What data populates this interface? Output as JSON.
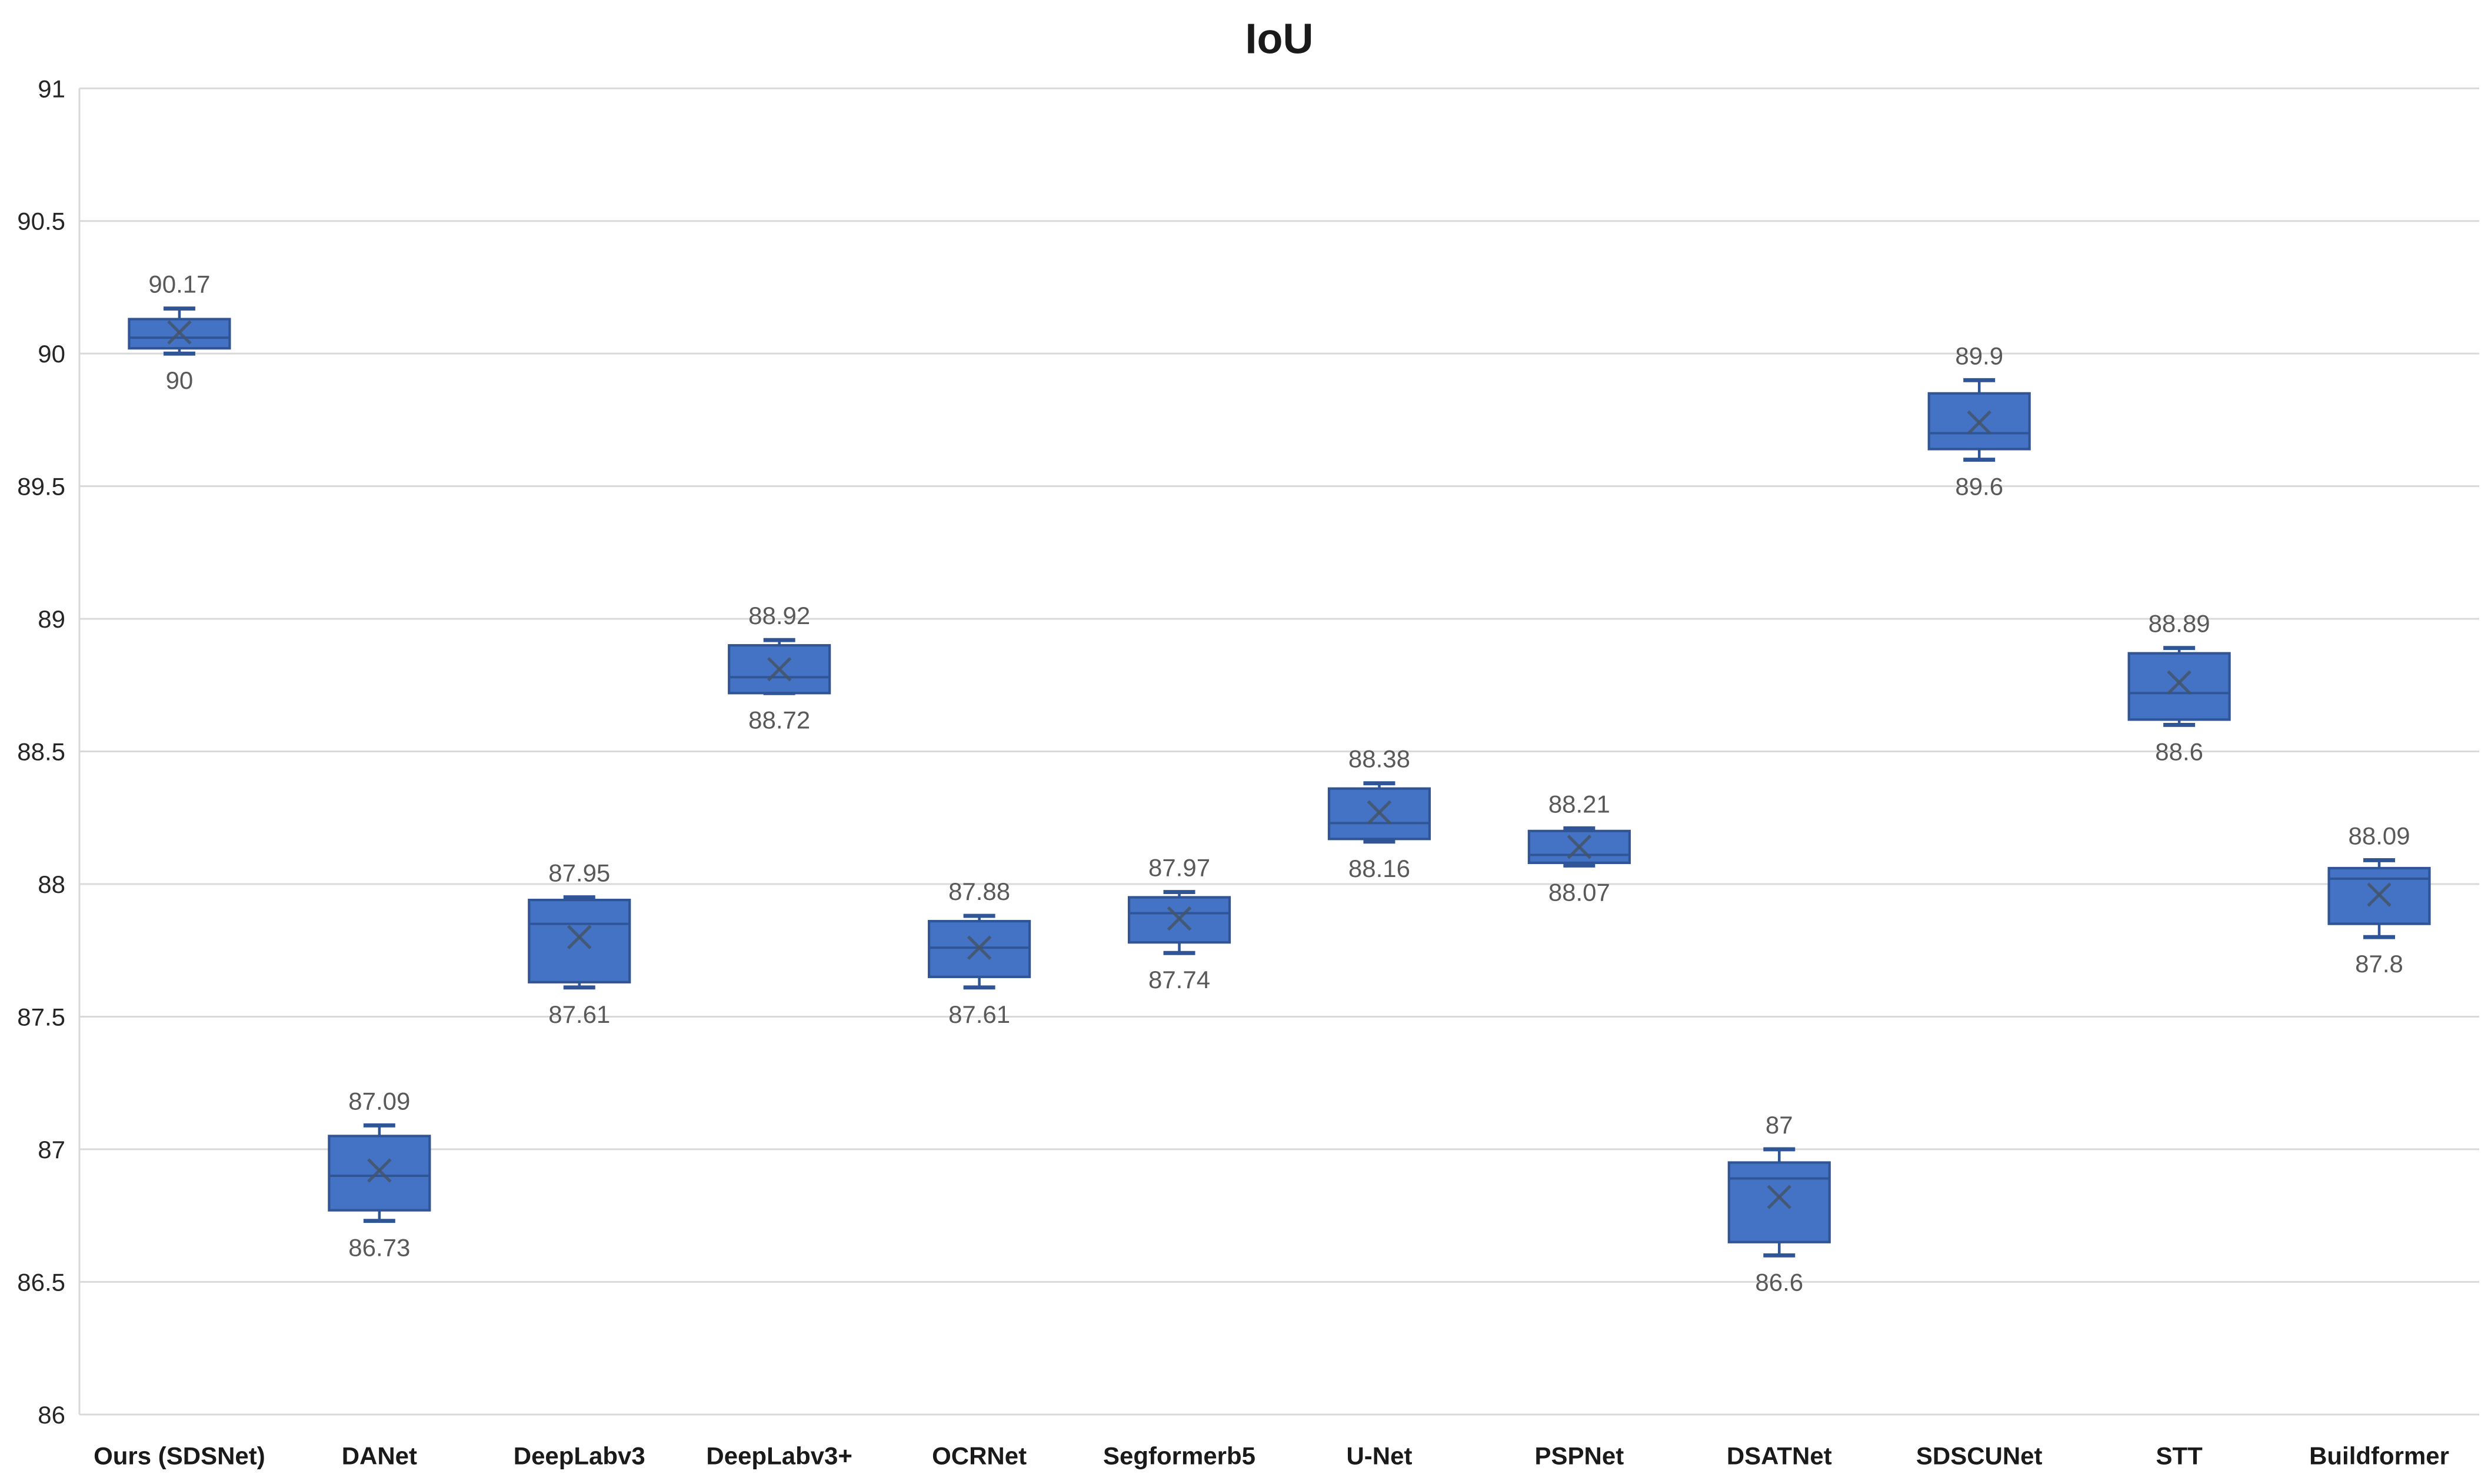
{
  "chart_data": {
    "type": "boxplot",
    "title": "IoU",
    "ylim": [
      86,
      91
    ],
    "y_tick_step": 0.5,
    "y_tick_labels": [
      "91",
      "90.5",
      "90",
      "89.5",
      "89",
      "88.5",
      "88",
      "87.5",
      "87",
      "86.5",
      "86"
    ],
    "grid": true,
    "legend": false,
    "categories": [
      {
        "label": "Ours (SDSNet)",
        "min": 90.0,
        "q1": 90.02,
        "median": 90.06,
        "mean": 90.08,
        "q3": 90.13,
        "max": 90.17,
        "max_label": "90.17",
        "min_label": "90"
      },
      {
        "label": "DANet",
        "min": 86.73,
        "q1": 86.77,
        "median": 86.9,
        "mean": 86.92,
        "q3": 87.05,
        "max": 87.09,
        "max_label": "87.09",
        "min_label": "86.73"
      },
      {
        "label": "DeepLabv3",
        "min": 87.61,
        "q1": 87.63,
        "median": 87.85,
        "mean": 87.8,
        "q3": 87.94,
        "max": 87.95,
        "max_label": "87.95",
        "min_label": "87.61"
      },
      {
        "label": "DeepLabv3+",
        "min": 88.72,
        "q1": 88.72,
        "median": 88.78,
        "mean": 88.81,
        "q3": 88.9,
        "max": 88.92,
        "max_label": "88.92",
        "min_label": "88.72"
      },
      {
        "label": "OCRNet",
        "min": 87.61,
        "q1": 87.65,
        "median": 87.76,
        "mean": 87.76,
        "q3": 87.86,
        "max": 87.88,
        "max_label": "87.88",
        "min_label": "87.61"
      },
      {
        "label": "Segformerb5",
        "min": 87.74,
        "q1": 87.78,
        "median": 87.89,
        "mean": 87.87,
        "q3": 87.95,
        "max": 87.97,
        "max_label": "87.97",
        "min_label": "87.74"
      },
      {
        "label": "U-Net",
        "min": 88.16,
        "q1": 88.17,
        "median": 88.23,
        "mean": 88.27,
        "q3": 88.36,
        "max": 88.38,
        "max_label": "88.38",
        "min_label": "88.16"
      },
      {
        "label": "PSPNet",
        "min": 88.07,
        "q1": 88.08,
        "median": 88.11,
        "mean": 88.14,
        "q3": 88.2,
        "max": 88.21,
        "max_label": "88.21",
        "min_label": "88.07"
      },
      {
        "label": "DSATNet",
        "min": 86.6,
        "q1": 86.65,
        "median": 86.89,
        "mean": 86.82,
        "q3": 86.95,
        "max": 87.0,
        "max_label": "87",
        "min_label": "86.6"
      },
      {
        "label": "SDSCUNet",
        "min": 89.6,
        "q1": 89.64,
        "median": 89.7,
        "mean": 89.74,
        "q3": 89.85,
        "max": 89.9,
        "max_label": "89.9",
        "min_label": "89.6"
      },
      {
        "label": "STT",
        "min": 88.6,
        "q1": 88.62,
        "median": 88.72,
        "mean": 88.76,
        "q3": 88.87,
        "max": 88.89,
        "max_label": "88.89",
        "min_label": "88.6"
      },
      {
        "label": "Buildformer",
        "min": 87.8,
        "q1": 87.85,
        "median": 88.02,
        "mean": 87.96,
        "q3": 88.06,
        "max": 88.09,
        "max_label": "88.09",
        "min_label": "87.8"
      }
    ],
    "colors": {
      "box_fill": "#4472C4",
      "box_border": "#2F5597",
      "whisker": "#2F5597",
      "mean_marker": "#44546A",
      "gridline": "#D9D9D9",
      "data_label": "#595959",
      "axis_label": "#262626",
      "category_label": "#1A1A1A",
      "title": "#1A1A1A",
      "background": "#FFFFFF"
    }
  }
}
